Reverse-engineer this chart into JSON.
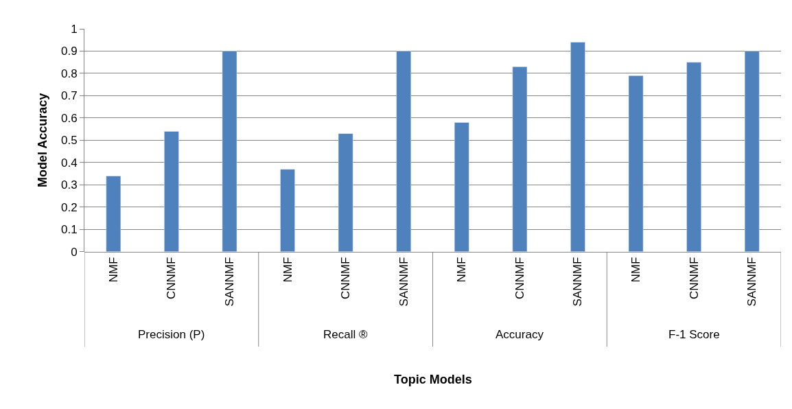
{
  "chart_data": {
    "type": "bar",
    "categories": [
      "NMF",
      "CNNMF",
      "SANNMF",
      "NMF",
      "CNNMF",
      "SANNMF",
      "NMF",
      "CNNMF",
      "SANNMF",
      "NMF",
      "CNNMF",
      "SANNMF"
    ],
    "values": [
      0.34,
      0.54,
      0.9,
      0.37,
      0.53,
      0.9,
      0.58,
      0.83,
      0.94,
      0.79,
      0.85,
      0.9
    ],
    "color": "#4f81bd",
    "annotations": [
      "Precision (P)",
      "Recall ®",
      "Accuracy",
      "F-1 Score",
      "Topic Models"
    ],
    "ylabel": "Model Accuracy",
    "ylim": [
      0,
      1
    ],
    "yticks": [
      0,
      0.1,
      0.2,
      0.3,
      0.4,
      0.5,
      0.6,
      0.7,
      0.8,
      0.9,
      1
    ],
    "grid": "y"
  }
}
